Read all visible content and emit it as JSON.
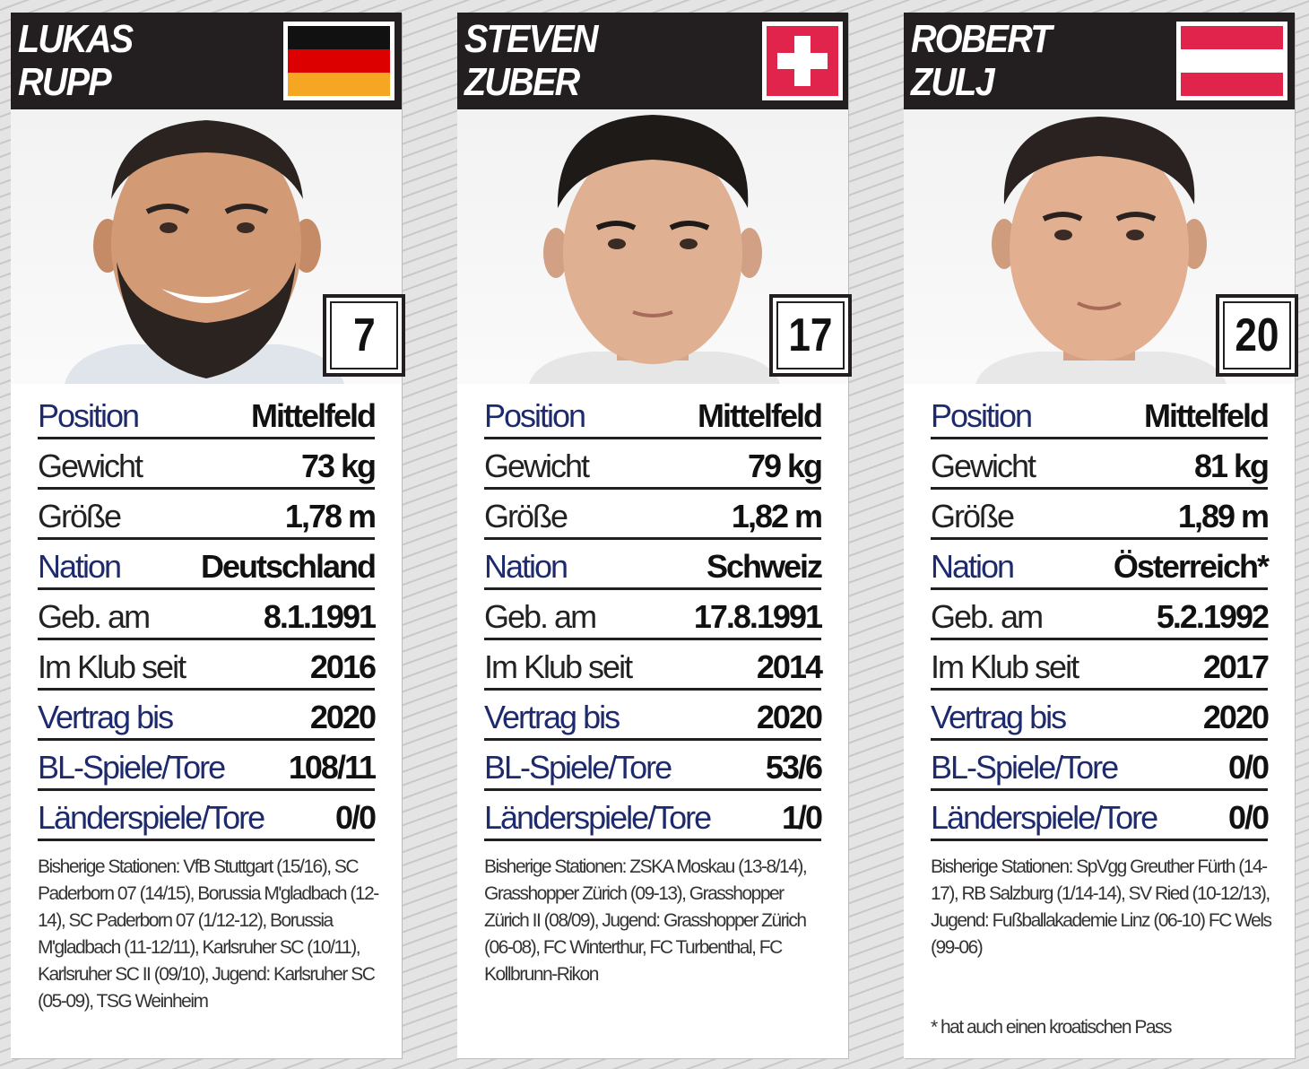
{
  "cards": [
    {
      "first_name": "LUKAS",
      "last_name": "RUPP",
      "flag_icon": "germany-flag-icon",
      "number": "7",
      "stats": [
        {
          "label": "Position",
          "value": "Mittelfeld"
        },
        {
          "label": "Gewicht",
          "value": "73 kg"
        },
        {
          "label": "Größe",
          "value": "1,78 m"
        },
        {
          "label": "Nation",
          "value": "Deutschland"
        },
        {
          "label": "Geb. am",
          "value": "8.1.1991"
        },
        {
          "label": "Im Klub seit",
          "value": "2016"
        },
        {
          "label": "Vertrag bis",
          "value": "2020"
        },
        {
          "label": "BL-Spiele/Tore",
          "value": "108/11"
        },
        {
          "label": "Länderspiele/Tore",
          "value": "0/0"
        }
      ],
      "stations": "Bisherige Stationen: VfB Stuttgart (15/16), SC Paderborn 07 (14/15), Borussia M'gladbach (12-14), SC Paderborn 07 (1/12-12), Borussia M'gladbach (11-12/11), Karlsruher SC (10/11), Karlsruher SC II (09/10), Jugend: Karlsruher SC (05-09), TSG Weinheim",
      "footnote": ""
    },
    {
      "first_name": "STEVEN",
      "last_name": "ZUBER",
      "flag_icon": "switzerland-flag-icon",
      "number": "17",
      "stats": [
        {
          "label": "Position",
          "value": "Mittelfeld"
        },
        {
          "label": "Gewicht",
          "value": "79 kg"
        },
        {
          "label": "Größe",
          "value": "1,82 m"
        },
        {
          "label": "Nation",
          "value": "Schweiz"
        },
        {
          "label": "Geb. am",
          "value": "17.8.1991"
        },
        {
          "label": "Im Klub seit",
          "value": "2014"
        },
        {
          "label": "Vertrag bis",
          "value": "2020"
        },
        {
          "label": "BL-Spiele/Tore",
          "value": "53/6"
        },
        {
          "label": "Länderspiele/Tore",
          "value": "1/0"
        }
      ],
      "stations": "Bisherige Stationen: ZSKA Moskau (13-8/14), Grasshopper Zürich (09-13), Grasshopper Zürich II (08/09), Jugend: Grasshopper Zürich (06-08), FC Winterthur, FC Turbenthal, FC Kollbrunn-Rikon",
      "footnote": ""
    },
    {
      "first_name": "ROBERT",
      "last_name": "ZULJ",
      "flag_icon": "austria-flag-icon",
      "number": "20",
      "stats": [
        {
          "label": "Position",
          "value": "Mittelfeld"
        },
        {
          "label": "Gewicht",
          "value": "81 kg"
        },
        {
          "label": "Größe",
          "value": "1,89 m"
        },
        {
          "label": "Nation",
          "value": "Österreich*"
        },
        {
          "label": "Geb. am",
          "value": "5.2.1992"
        },
        {
          "label": "Im Klub seit",
          "value": "2017"
        },
        {
          "label": "Vertrag bis",
          "value": "2020"
        },
        {
          "label": "BL-Spiele/Tore",
          "value": "0/0"
        },
        {
          "label": "Länderspiele/Tore",
          "value": "0/0"
        }
      ],
      "stations": "Bisherige Stationen: SpVgg Greuther Fürth (14-17), RB Salzburg (1/14-14), SV Ried (10-12/13), Jugend: Fußballakademie Linz (06-10) FC Wels (99-06)",
      "footnote": "* hat auch einen kroatischen Pass"
    }
  ]
}
